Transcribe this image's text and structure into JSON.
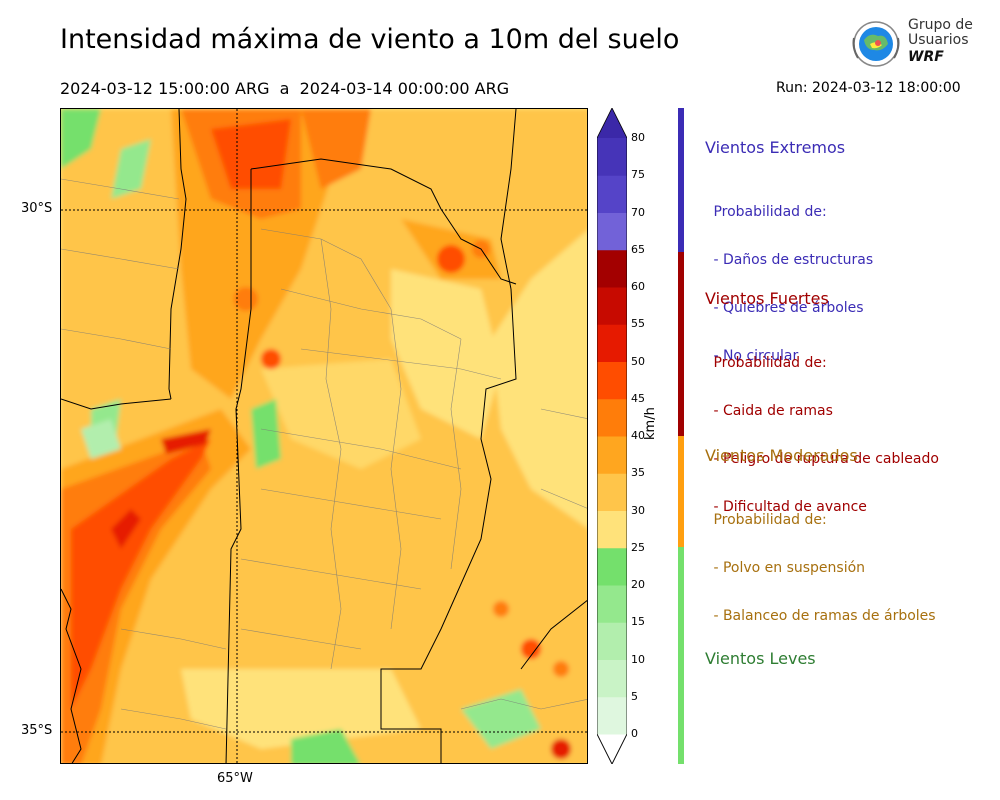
{
  "header": {
    "title": "Intensidad máxima de viento a 10m del suelo",
    "period": "2024-03-12 15:00:00 ARG  a  2024-03-14 00:00:00 ARG",
    "run": "Run: 2024-03-12 18:00:00"
  },
  "logo": {
    "line1": "Grupo de",
    "line2": "Usuarios",
    "brand": "WRF"
  },
  "map": {
    "lat_labels": [
      "30°S",
      "35°S"
    ],
    "lon_labels": [
      "65°W"
    ]
  },
  "colorbar": {
    "unit": "km/h",
    "ticks": [
      "80",
      "75",
      "70",
      "65",
      "60",
      "55",
      "50",
      "45",
      "40",
      "35",
      "30",
      "25",
      "20",
      "15",
      "10",
      "5",
      "0"
    ],
    "colors": [
      "#dff7df",
      "#c9f3c6",
      "#b2eead",
      "#94e88d",
      "#74e06c",
      "#ffe27a",
      "#ffc54a",
      "#ffa61f",
      "#ff7d0a",
      "#ff4d00",
      "#e61a00",
      "#c70a00",
      "#a30000",
      "#7262d8",
      "#5544c8",
      "#4634b8",
      "#3b28a8"
    ]
  },
  "categories": [
    {
      "name": "Vientos Extremos",
      "color": "#3b2cb5",
      "lines": [
        " Probabilidad de:",
        " - Daños de estructuras",
        " - Quiebres de árboles",
        " - No circular"
      ]
    },
    {
      "name": "Vientos Fuertes",
      "color": "#a00000",
      "lines": [
        " Probabilidad de:",
        " - Caida de ramas",
        " - Peligro de ruptura de cableado",
        " - Dificultad de avance"
      ]
    },
    {
      "name": "Vientos Moderados",
      "color": "#a7700f",
      "lines": [
        " Probabilidad de:",
        " - Polvo en suspensión",
        " - Balanceo de ramas de árboles"
      ]
    },
    {
      "name": "Vientos Leves",
      "color": "#2e7d32",
      "lines": []
    }
  ]
}
